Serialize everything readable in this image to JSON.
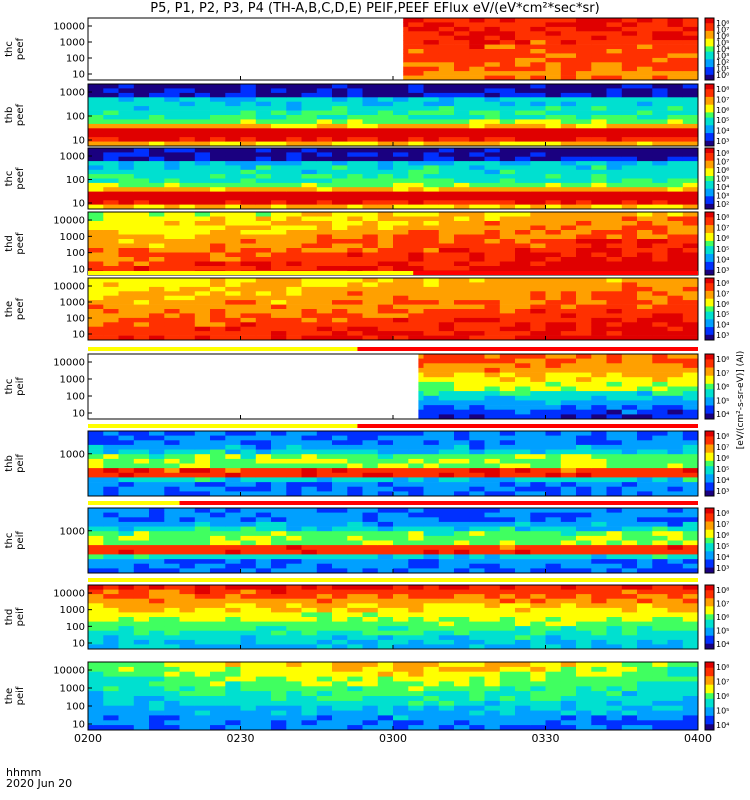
{
  "title": "P5, P1, P2, P3, P4 (TH-A,B,C,D,E) PEIF,PEEF EFlux eV/(eV*cm²*sec*sr)",
  "footer": {
    "time_label": "hhmm",
    "date_label": "2020 Jun 20"
  },
  "colorbar_unit_label": "[eV/(cm²-s-sr-eV)] (Al)",
  "colormap": [
    "#1a0080",
    "#0030ff",
    "#00a0ff",
    "#00e0d0",
    "#40ff60",
    "#ffff00",
    "#ffa000",
    "#ff3000",
    "#e00000"
  ],
  "chart_data": {
    "type": "heatmap",
    "x_axis": {
      "ticks": [
        "0200",
        "0230",
        "0300",
        "0330",
        "0400"
      ],
      "range": [
        "0200",
        "0400"
      ]
    },
    "panels": [
      {
        "probe": "thc",
        "quantity": "peef",
        "ylabel": "thc\npeef",
        "yticks": [
          "10000",
          "1000",
          "100",
          "10"
        ],
        "colorbar_ticks": [
          "10⁸",
          "10⁷",
          "10⁶",
          "10⁵",
          "10⁴",
          "10³",
          "10²",
          "10¹",
          "10⁰"
        ],
        "data_start": "0302",
        "status_bar": false
      },
      {
        "probe": "thb",
        "quantity": "peef",
        "ylabel": "thb\npeef",
        "yticks": [
          "1000",
          "100",
          "10"
        ],
        "colorbar_ticks": [
          "10⁸",
          "10⁷",
          "10⁶",
          "10⁵",
          "10⁴",
          "10³"
        ],
        "data_start": "0200",
        "status_bar": false
      },
      {
        "probe": "thc",
        "quantity": "peef",
        "ylabel": "thc\npeef",
        "yticks": [
          "1000",
          "100",
          "10"
        ],
        "colorbar_ticks": [
          "10⁸",
          "10⁷",
          "10⁶",
          "10⁵",
          "10⁴",
          "10³",
          "10²"
        ],
        "data_start": "0200",
        "status_bar": false
      },
      {
        "probe": "thd",
        "quantity": "peef",
        "ylabel": "thd\npeef",
        "yticks": [
          "10000",
          "1000",
          "100",
          "10"
        ],
        "colorbar_ticks": [
          "10⁸",
          "10⁷",
          "10⁶",
          "10⁵",
          "10⁴",
          "10³"
        ],
        "data_start": "0200",
        "status_bar": false
      },
      {
        "probe": "the",
        "quantity": "peef",
        "ylabel": "the\npeef",
        "yticks": [
          "10000",
          "1000",
          "100",
          "10"
        ],
        "colorbar_ticks": [
          "10⁸",
          "10⁷",
          "10⁶",
          "10⁵",
          "10⁴",
          "10³"
        ],
        "data_start": "0200",
        "status_bar": true,
        "status_switch": "0304"
      },
      {
        "probe": "thc",
        "quantity": "peif",
        "ylabel": "thc\npeif",
        "yticks": [
          "10000",
          "1000",
          "100",
          "10"
        ],
        "colorbar_ticks": [
          "10⁸",
          "10⁷",
          "10⁶",
          "10⁵",
          "10⁴"
        ],
        "data_start": "0305",
        "status_bar": true,
        "status_switch": "0253"
      },
      {
        "probe": "thb",
        "quantity": "peif",
        "ylabel": "thb\npeif",
        "yticks": [
          "1000"
        ],
        "colorbar_ticks": [
          "10⁸",
          "10⁷",
          "10⁶",
          "10⁵",
          "10⁴",
          "10³"
        ],
        "data_start": "0200",
        "status_bar": true,
        "status_switch": "0253"
      },
      {
        "probe": "thc",
        "quantity": "peif",
        "ylabel": "thc\npeif",
        "yticks": [
          "1000"
        ],
        "colorbar_ticks": [
          "10⁸",
          "10⁷",
          "10⁶",
          "10⁵",
          "10⁴",
          "10³"
        ],
        "data_start": "0200",
        "status_bar": true,
        "status_switch": "0218"
      },
      {
        "probe": "thd",
        "quantity": "peif",
        "ylabel": "thd\npeif",
        "yticks": [
          "10000",
          "1000",
          "100",
          "10"
        ],
        "colorbar_ticks": [
          "10⁸",
          "10⁷",
          "10⁶",
          "10⁵",
          "10⁴"
        ],
        "data_start": "0200",
        "status_bar": true,
        "status_switch": "0400"
      },
      {
        "probe": "the",
        "quantity": "peif",
        "ylabel": "the\npeif",
        "yticks": [
          "10000",
          "1000",
          "100",
          "10"
        ],
        "colorbar_ticks": [
          "10⁸",
          "10⁷",
          "10⁶",
          "10⁵",
          "10⁴"
        ],
        "data_start": "0200",
        "status_bar": false
      }
    ]
  }
}
